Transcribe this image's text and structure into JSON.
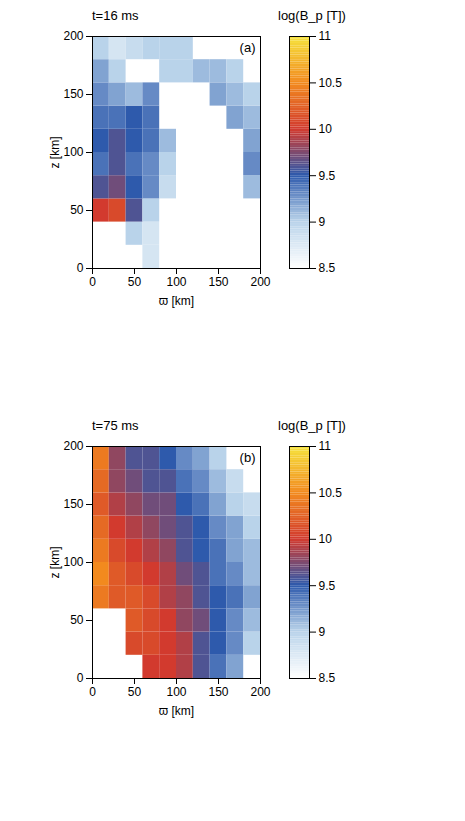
{
  "chart_data": [
    {
      "type": "heatmap",
      "title": "t=16 ms",
      "annotation": "(a)",
      "x_label": "ϖ [km]",
      "y_label": "z [km]",
      "xlim": [
        0,
        200
      ],
      "ylim": [
        0,
        200
      ],
      "xticks": [
        0,
        50,
        100,
        150,
        200
      ],
      "yticks": [
        0,
        50,
        100,
        150,
        200
      ],
      "x_edges": [
        0,
        20,
        40,
        60,
        80,
        100,
        120,
        140,
        160,
        180,
        200
      ],
      "y_edges": [
        0,
        20,
        40,
        60,
        80,
        100,
        120,
        140,
        160,
        180,
        200
      ],
      "cells": [
        [
          null,
          null,
          null,
          8.8,
          null,
          null,
          null,
          null,
          null,
          null
        ],
        [
          null,
          null,
          9.0,
          8.8,
          null,
          null,
          null,
          null,
          null,
          null
        ],
        [
          10.0,
          10.1,
          9.6,
          9.0,
          null,
          null,
          null,
          null,
          null,
          null
        ],
        [
          9.6,
          9.7,
          9.5,
          9.3,
          8.9,
          null,
          null,
          null,
          null,
          9.1
        ],
        [
          9.4,
          9.6,
          9.4,
          9.3,
          9.0,
          null,
          null,
          null,
          null,
          9.3
        ],
        [
          9.5,
          9.6,
          9.5,
          9.4,
          9.1,
          null,
          null,
          null,
          null,
          9.2
        ],
        [
          9.4,
          9.4,
          9.5,
          9.4,
          null,
          null,
          null,
          null,
          9.2,
          9.1
        ],
        [
          9.3,
          9.2,
          9.1,
          9.3,
          null,
          null,
          null,
          9.2,
          9.1,
          9.0
        ],
        [
          9.2,
          9.0,
          null,
          null,
          9.0,
          9.0,
          9.1,
          9.1,
          9.0,
          null
        ],
        [
          9.0,
          8.8,
          8.9,
          9.0,
          9.0,
          9.0,
          null,
          null,
          null,
          null
        ]
      ],
      "colorbar": {
        "label": "log(B_p [T])",
        "range": [
          8.5,
          11
        ],
        "ticks": [
          8.5,
          9,
          9.5,
          10,
          10.5,
          11
        ]
      }
    },
    {
      "type": "heatmap",
      "title": "t=75 ms",
      "annotation": "(b)",
      "x_label": "ϖ [km]",
      "y_label": "z [km]",
      "xlim": [
        0,
        200
      ],
      "ylim": [
        0,
        200
      ],
      "xticks": [
        0,
        50,
        100,
        150,
        200
      ],
      "yticks": [
        0,
        50,
        100,
        150,
        200
      ],
      "x_edges": [
        0,
        20,
        40,
        60,
        80,
        100,
        120,
        140,
        160,
        180,
        200
      ],
      "y_edges": [
        0,
        20,
        40,
        60,
        80,
        100,
        120,
        140,
        160,
        180,
        200
      ],
      "cells": [
        [
          null,
          null,
          null,
          10.0,
          10.0,
          9.9,
          9.6,
          9.4,
          9.2,
          null
        ],
        [
          null,
          null,
          10.1,
          10.1,
          10.0,
          9.9,
          9.6,
          9.5,
          9.3,
          9.0
        ],
        [
          null,
          null,
          10.2,
          10.1,
          10.0,
          9.8,
          9.7,
          9.5,
          9.3,
          9.1
        ],
        [
          10.4,
          10.2,
          10.2,
          10.1,
          9.9,
          9.8,
          9.6,
          9.5,
          9.4,
          9.2
        ],
        [
          10.5,
          10.2,
          10.1,
          10.0,
          9.9,
          9.7,
          9.6,
          9.4,
          9.3,
          9.1
        ],
        [
          10.4,
          10.1,
          10.0,
          9.9,
          9.8,
          9.6,
          9.5,
          9.4,
          9.2,
          9.1
        ],
        [
          10.3,
          10.0,
          9.9,
          9.8,
          9.7,
          9.6,
          9.5,
          9.3,
          9.2,
          9.0
        ],
        [
          10.2,
          9.9,
          9.8,
          9.7,
          9.7,
          9.5,
          9.4,
          9.2,
          9.0,
          8.9
        ],
        [
          10.3,
          9.8,
          9.7,
          9.6,
          9.6,
          9.4,
          9.3,
          9.1,
          8.9,
          null
        ],
        [
          10.4,
          9.8,
          9.6,
          9.6,
          9.5,
          9.3,
          9.2,
          9.0,
          null,
          null
        ]
      ],
      "colorbar": {
        "label": "log(B_p [T])",
        "range": [
          8.5,
          11
        ],
        "ticks": [
          8.5,
          9,
          9.5,
          10,
          10.5,
          11
        ]
      }
    }
  ]
}
